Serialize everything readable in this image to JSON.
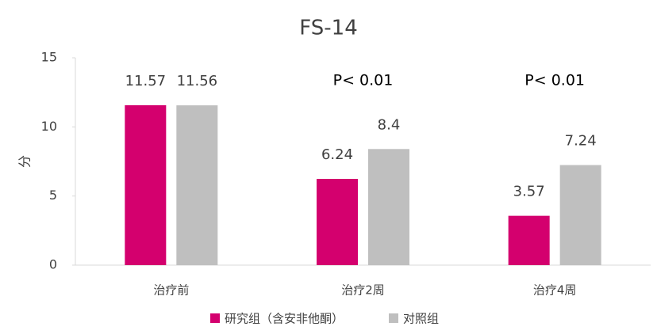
{
  "chart_data": {
    "type": "bar",
    "title": "FS-14",
    "y_label": "分",
    "categories": [
      "治疗前",
      "治疗2周",
      "治疗4周"
    ],
    "annotations": [
      null,
      "P< 0.01",
      "P< 0.01"
    ],
    "series": [
      {
        "name": "研究组（含安非他酮）",
        "color": "#d4006e",
        "values": [
          11.57,
          6.24,
          3.57
        ]
      },
      {
        "name": "对照组",
        "color": "#bfbfbf",
        "values": [
          11.56,
          8.4,
          7.24
        ]
      }
    ],
    "ylim": [
      0,
      15
    ],
    "yticks": [
      0,
      5,
      10,
      15
    ],
    "grid": false,
    "legend": "bottom"
  }
}
